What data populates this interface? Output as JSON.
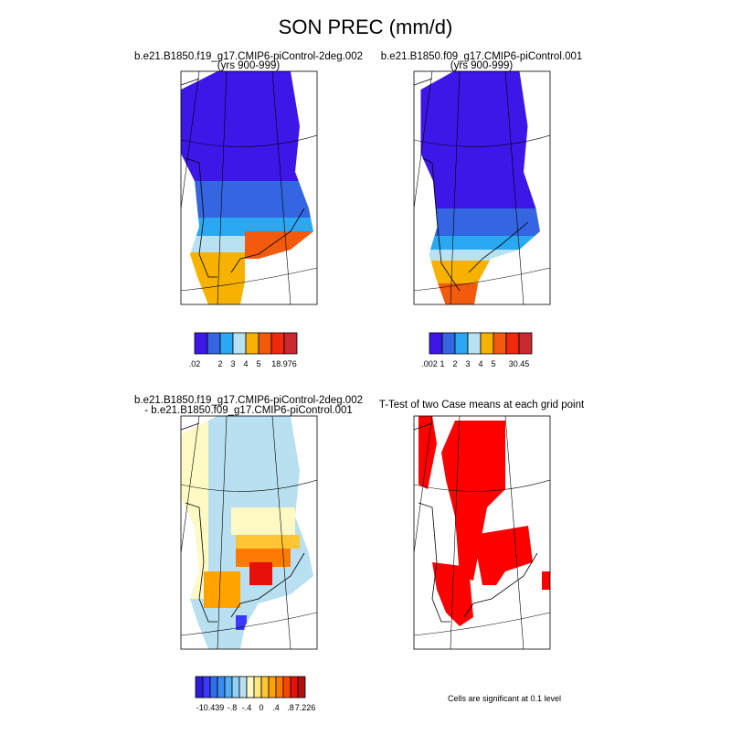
{
  "title": "SON PREC (mm/d)",
  "panels": [
    {
      "title": "b.e21.B1850.f19_g17.CMIP6-piControl-2deg.002",
      "subtitle": "(yrs 900-999)",
      "colorbar": {
        "colors": [
          "#3d16e8",
          "#3366e0",
          "#2aa8f2",
          "#b8e2f2",
          "#f7b200",
          "#f25a0c",
          "#f0280e",
          "#c8282e"
        ],
        "labels": [
          ".02",
          null,
          "2",
          "3",
          "4",
          "5",
          null,
          "18.976"
        ]
      }
    },
    {
      "title": "b.e21.B1850.f09_g17.CMIP6-piControl.001",
      "subtitle": "(yrs 900-999)",
      "colorbar": {
        "colors": [
          "#3d16e8",
          "#3366e0",
          "#2aa8f2",
          "#b8e2f2",
          "#f7b200",
          "#f25a0c",
          "#f0280e",
          "#c8282e"
        ],
        "labels": [
          ".002",
          "1",
          "2",
          "3",
          "4",
          "5",
          null,
          "30.45"
        ]
      }
    },
    {
      "title": "b.e21.B1850.f19_g17.CMIP6-piControl-2deg.002",
      "subtitle": "- b.e21.B1850.f09_g17.CMIP6-piControl.001",
      "colorbar": {
        "colors": [
          "#2a1ed8",
          "#3a3aff",
          "#2f6ee8",
          "#3c8cf0",
          "#4fb0f5",
          "#8fd0f5",
          "#b8e0f0",
          "#fff9c4",
          "#ffe680",
          "#ffc533",
          "#ffa300",
          "#ff7a00",
          "#ff4500",
          "#e8100a",
          "#b01010"
        ],
        "labels": [
          null,
          null,
          "-10.439",
          null,
          null,
          "-.8",
          null,
          "-.4",
          null,
          "0",
          null,
          ".4",
          null,
          ".8",
          null,
          "7.226"
        ]
      }
    },
    {
      "title": "T-Test of two Case means at each grid point",
      "note": "Cells are significant at 0.1 level"
    }
  ]
}
